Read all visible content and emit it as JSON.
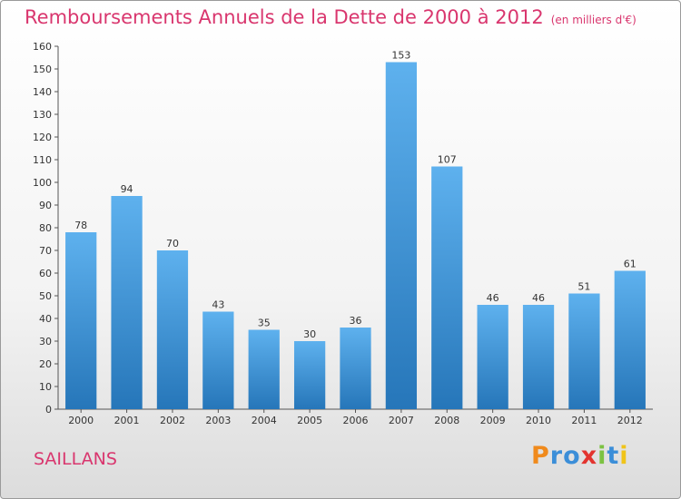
{
  "header": {
    "title": "Remboursements Annuels de la Dette de 2000 à 2012",
    "unit": "(en milliers d'€)"
  },
  "footer": {
    "commune": "SAILLANS",
    "logo": {
      "letters": [
        "P",
        "r",
        "o",
        "x",
        "i",
        "t",
        "i"
      ],
      "colors": [
        "#f08a1c",
        "#3b8ed8",
        "#3b8ed8",
        "#e3342f",
        "#7cc242",
        "#3b8ed8",
        "#f0c419"
      ]
    }
  },
  "chart_data": {
    "type": "bar",
    "title": "Remboursements Annuels de la Dette de 2000 à 2012",
    "subtitle": "(en milliers d'€)",
    "categories": [
      "2000",
      "2001",
      "2002",
      "2003",
      "2004",
      "2005",
      "2006",
      "2007",
      "2008",
      "2009",
      "2010",
      "2011",
      "2012"
    ],
    "values": [
      78,
      94,
      70,
      43,
      35,
      30,
      36,
      153,
      107,
      46,
      46,
      51,
      61
    ],
    "ylim": [
      0,
      160
    ],
    "ytick_step": 10,
    "grid": false,
    "bar_color": "#3a95dd",
    "text_color": "#333333"
  }
}
